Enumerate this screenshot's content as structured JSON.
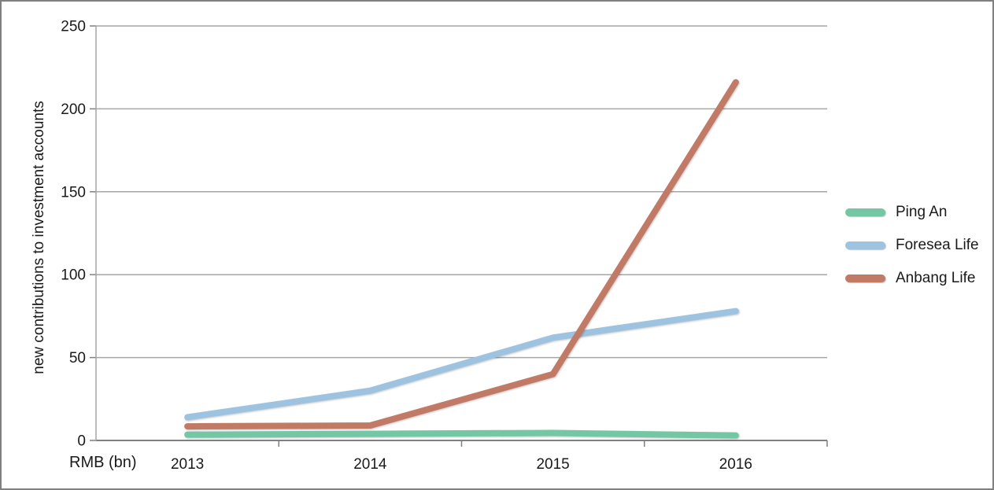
{
  "chart_data": {
    "type": "line",
    "categories": [
      "2013",
      "2014",
      "2015",
      "2016"
    ],
    "series": [
      {
        "name": "Ping An",
        "color": "#74c7a4",
        "values": [
          3.5,
          4,
          4.5,
          3
        ]
      },
      {
        "name": "Foresea Life",
        "color": "#9dc3e1",
        "values": [
          14,
          30,
          62,
          78
        ]
      },
      {
        "name": "Anbang Life",
        "color": "#c07a66",
        "values": [
          8.5,
          9,
          40,
          216
        ]
      }
    ],
    "title": "",
    "ylabel": "new contributions to investment accounts",
    "xlabel": "RMB (bn)",
    "yticks": [
      0,
      50,
      100,
      150,
      200,
      250
    ],
    "ylim": [
      0,
      250
    ],
    "grid": true,
    "legend_position": "right",
    "colors": {
      "gridline": "#a6a6a6",
      "axis": "#808080",
      "text": "#1a1a1a"
    }
  }
}
